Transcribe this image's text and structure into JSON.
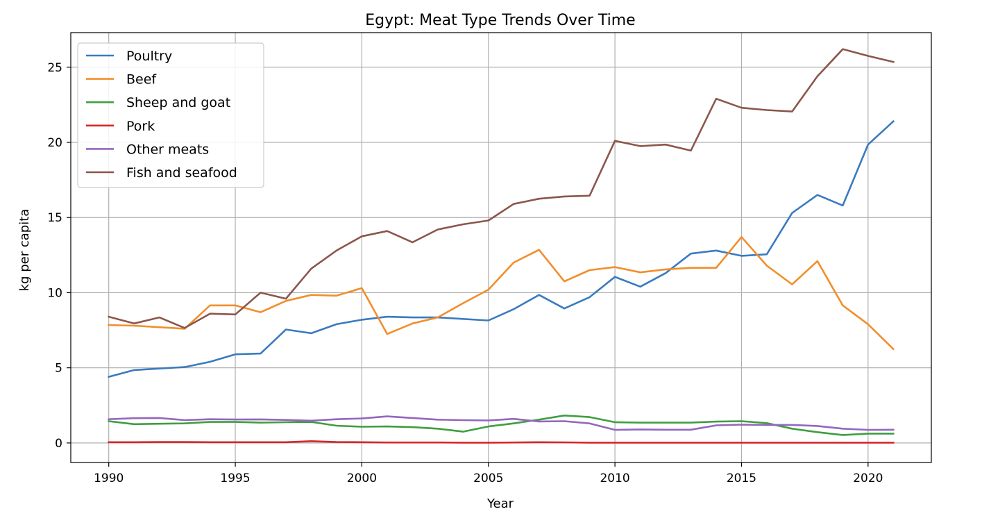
{
  "chart_data": {
    "type": "line",
    "title": "Egypt: Meat Type Trends Over Time",
    "xlabel": "Year",
    "ylabel": "kg per capita",
    "xlim": [
      1988.5,
      2022.5
    ],
    "ylim": [
      -1.3,
      27.3
    ],
    "xticks": [
      1990,
      1995,
      2000,
      2005,
      2010,
      2015,
      2020
    ],
    "yticks": [
      0,
      5,
      10,
      15,
      20,
      25
    ],
    "grid": true,
    "legend_position": "upper-left",
    "x": [
      1990,
      1991,
      1992,
      1993,
      1994,
      1995,
      1996,
      1997,
      1998,
      1999,
      2000,
      2001,
      2002,
      2003,
      2004,
      2005,
      2006,
      2007,
      2008,
      2009,
      2010,
      2011,
      2012,
      2013,
      2014,
      2015,
      2016,
      2017,
      2018,
      2019,
      2020,
      2021
    ],
    "series": [
      {
        "name": "Poultry",
        "color": "#3a7bbf",
        "values": [
          4.4,
          4.85,
          4.95,
          5.05,
          5.4,
          5.9,
          5.95,
          7.55,
          7.3,
          7.9,
          8.2,
          8.4,
          8.35,
          8.35,
          8.25,
          8.15,
          8.9,
          9.85,
          8.95,
          9.7,
          11.05,
          10.4,
          11.3,
          12.6,
          12.8,
          12.45,
          12.55,
          15.3,
          16.5,
          15.8,
          19.85,
          21.4
        ]
      },
      {
        "name": "Beef",
        "color": "#f28e2b",
        "values": [
          7.85,
          7.8,
          7.7,
          7.6,
          9.15,
          9.15,
          8.7,
          9.45,
          9.85,
          9.8,
          10.3,
          7.25,
          7.95,
          8.35,
          9.3,
          10.2,
          12.0,
          12.85,
          10.75,
          11.5,
          11.7,
          11.35,
          11.55,
          11.65,
          11.65,
          13.7,
          11.8,
          10.55,
          12.1,
          9.15,
          7.9,
          6.25
        ]
      },
      {
        "name": "Sheep and goat",
        "color": "#3f9e3f",
        "values": [
          1.45,
          1.25,
          1.28,
          1.3,
          1.4,
          1.4,
          1.35,
          1.38,
          1.4,
          1.15,
          1.08,
          1.1,
          1.05,
          0.95,
          0.75,
          1.1,
          1.3,
          1.55,
          1.83,
          1.72,
          1.38,
          1.35,
          1.35,
          1.35,
          1.42,
          1.45,
          1.32,
          0.95,
          0.72,
          0.53,
          0.62,
          0.62
        ]
      },
      {
        "name": "Pork",
        "color": "#d62728",
        "values": [
          0.05,
          0.05,
          0.06,
          0.06,
          0.05,
          0.05,
          0.05,
          0.05,
          0.12,
          0.06,
          0.05,
          0.03,
          0.03,
          0.03,
          0.02,
          0.02,
          0.03,
          0.05,
          0.04,
          0.02,
          0.02,
          0.02,
          0.02,
          0.02,
          0.02,
          0.02,
          0.02,
          0.02,
          0.02,
          0.02,
          0.02,
          0.02
        ]
      },
      {
        "name": "Other meats",
        "color": "#9467bd",
        "values": [
          1.58,
          1.65,
          1.66,
          1.52,
          1.58,
          1.56,
          1.57,
          1.53,
          1.48,
          1.58,
          1.63,
          1.77,
          1.66,
          1.55,
          1.52,
          1.5,
          1.6,
          1.43,
          1.45,
          1.3,
          0.87,
          0.9,
          0.88,
          0.88,
          1.17,
          1.22,
          1.2,
          1.2,
          1.13,
          0.95,
          0.87,
          0.88
        ]
      },
      {
        "name": "Fish and seafood",
        "color": "#8c564b",
        "values": [
          8.4,
          7.95,
          8.35,
          7.65,
          8.6,
          8.55,
          10.0,
          9.6,
          11.6,
          12.8,
          13.75,
          14.1,
          13.35,
          14.2,
          14.55,
          14.8,
          15.9,
          16.25,
          16.4,
          16.45,
          20.1,
          19.75,
          19.85,
          19.45,
          22.9,
          22.3,
          22.15,
          22.05,
          24.4,
          26.2,
          25.75,
          25.35
        ]
      }
    ]
  }
}
